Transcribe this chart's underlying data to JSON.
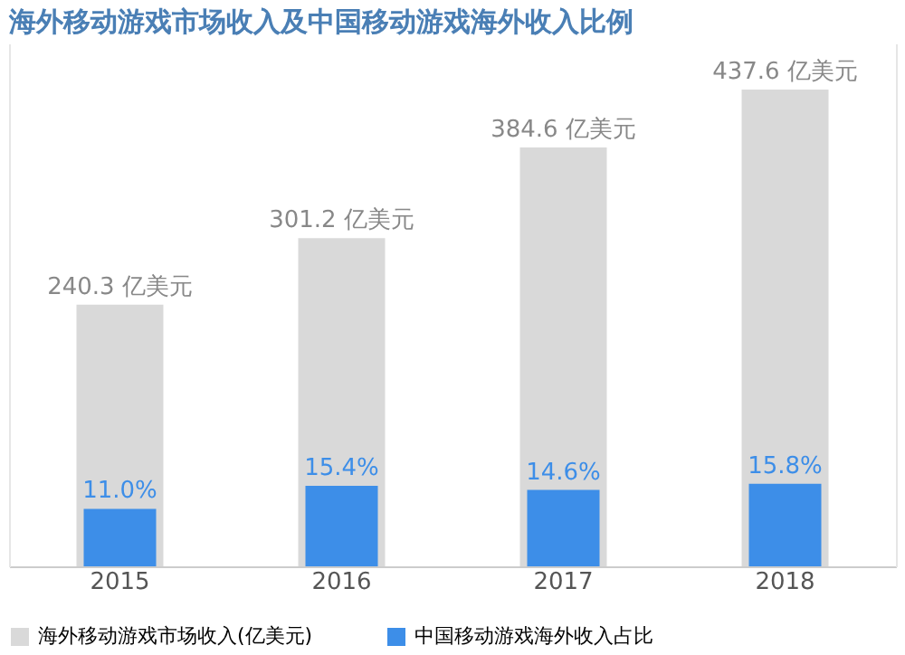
{
  "chart_data": {
    "type": "bar",
    "title": "海外移动游戏市场收入及中国移动游戏海外收入比例",
    "categories": [
      "2015",
      "2016",
      "2017",
      "2018"
    ],
    "series": [
      {
        "name": "海外移动游戏市场收入(亿美元)",
        "color": "#d9d9d9",
        "values": [
          240.3,
          301.2,
          384.6,
          437.6
        ],
        "value_labels": [
          "240.3 亿美元",
          "301.2 亿美元",
          "384.6 亿美元",
          "437.6 亿美元"
        ]
      },
      {
        "name": "中国移动游戏海外收入占比",
        "color": "#3d8ee8",
        "axis": "y2",
        "values": [
          11.0,
          15.4,
          14.6,
          15.8
        ],
        "value_labels": [
          "11.0%",
          "15.4%",
          "14.6%",
          "15.8%"
        ]
      }
    ],
    "ylim": [
      0,
      480
    ],
    "y2lim": [
      0,
      100
    ],
    "tick_labels": "x",
    "legend": "bottom"
  }
}
